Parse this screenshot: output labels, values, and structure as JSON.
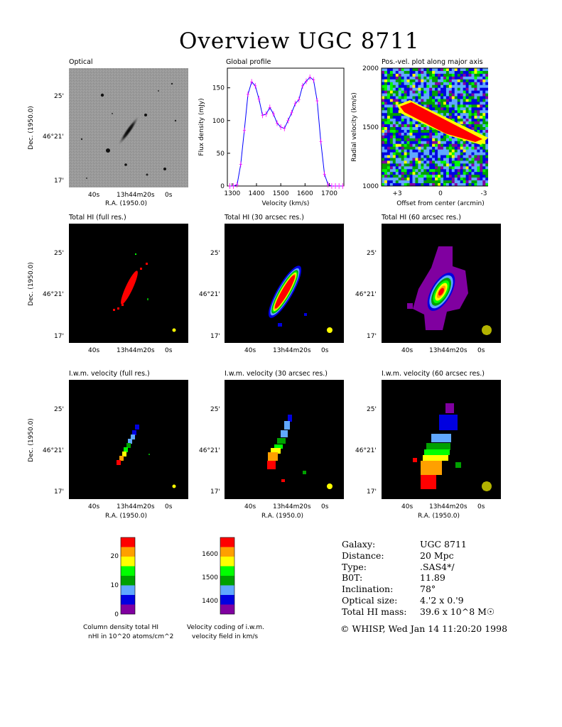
{
  "page": {
    "title": "Overview UGC 8711",
    "footer": "© WHISP, Wed Jan 14 11:20:20 1998"
  },
  "panels": {
    "optical": "Optical",
    "profile": "Global profile",
    "pv": "Pos.-vel. plot along major axis",
    "hi_full": "Total HI (full res.)",
    "hi_30": "Total HI (30 arcsec res.)",
    "hi_60": "Total HI (60 arcsec res.)",
    "vel_full": "I.w.m. velocity (full res.)",
    "vel_30": "I.w.m. velocity (30 arcsec res.)",
    "vel_60": "I.w.m. velocity (60 arcsec res.)"
  },
  "axes": {
    "dec_label": "Dec. (1950.0)",
    "ra_label": "R.A. (1950.0)",
    "dec_ticks": [
      "25'",
      "46°21'",
      "17'"
    ],
    "ra_ticks": [
      "40s",
      "13h44m20s",
      "0s"
    ]
  },
  "chart_data": [
    {
      "type": "line",
      "title": "Global profile",
      "xlabel": "Velocity (km/s)",
      "ylabel": "Flux density (mJy)",
      "xlim": [
        1280,
        1760
      ],
      "ylim": [
        0,
        180
      ],
      "xticks": [
        1300,
        1400,
        1500,
        1600,
        1700
      ],
      "yticks": [
        0,
        50,
        100,
        150
      ],
      "x": [
        1290,
        1305,
        1320,
        1335,
        1350,
        1365,
        1380,
        1395,
        1410,
        1425,
        1440,
        1455,
        1470,
        1485,
        1500,
        1515,
        1530,
        1545,
        1560,
        1575,
        1590,
        1605,
        1620,
        1635,
        1650,
        1665,
        1680,
        1695,
        1710,
        1725,
        1740,
        1755
      ],
      "y": [
        0,
        0,
        2,
        33,
        85,
        140,
        159,
        153,
        133,
        108,
        110,
        120,
        110,
        96,
        90,
        88,
        100,
        112,
        126,
        132,
        153,
        160,
        166,
        162,
        130,
        68,
        18,
        2,
        0,
        0,
        0,
        0
      ]
    },
    {
      "type": "heatmap",
      "title": "Pos.-vel. plot along major axis",
      "xlabel": "Offset from center (arcmin)",
      "ylabel": "Radial velocity (km/s)",
      "xticks": [
        "+3",
        "0",
        "-3"
      ],
      "yticks": [
        1000,
        1500,
        2000
      ],
      "ylim": [
        1000,
        2000
      ]
    },
    {
      "type": "bar",
      "title": "Column density total HI",
      "caption": "Column density total HI",
      "caption2": "nHI in 10^20 atoms/cm^2",
      "ticks": [
        "0",
        "10",
        "20"
      ],
      "colors": [
        "#8000a0",
        "#0000e0",
        "#60a8ff",
        "#00a000",
        "#00ff00",
        "#ffff00",
        "#ffa000",
        "#ff0000"
      ]
    },
    {
      "type": "bar",
      "title": "Velocity coding of i.w.m. velocity field in km/s",
      "caption": "Velocity coding of i.w.m.",
      "caption2": "velocity field in km/s",
      "ticks": [
        "1400",
        "1500",
        "1600"
      ],
      "colors": [
        "#8000a0",
        "#0000e0",
        "#60a8ff",
        "#00a000",
        "#00ff00",
        "#ffff00",
        "#ffa000",
        "#ff0000"
      ]
    }
  ],
  "info": [
    {
      "key": "Galaxy:",
      "value": "UGC 8711"
    },
    {
      "key": "Distance:",
      "value": "20 Mpc"
    },
    {
      "key": "Type:",
      "value": ".SAS4*/"
    },
    {
      "key": "B0T:",
      "value": "11.89"
    },
    {
      "key": "Inclination:",
      "value": "78°"
    },
    {
      "key": "Optical size:",
      "value": "4.'2 x 0.'9"
    },
    {
      "key": "Total HI mass:",
      "value": "39.6 x 10^8 M☉"
    }
  ],
  "colors": {
    "red": "#ff0000",
    "orange": "#ffa000",
    "yellow": "#ffff00",
    "lime": "#00ff00",
    "green": "#00a000",
    "lightblue": "#60a8ff",
    "blue": "#0000e0",
    "purple": "#8000a0",
    "profile_line": "#0000ff",
    "profile_err": "#ff00ff"
  }
}
